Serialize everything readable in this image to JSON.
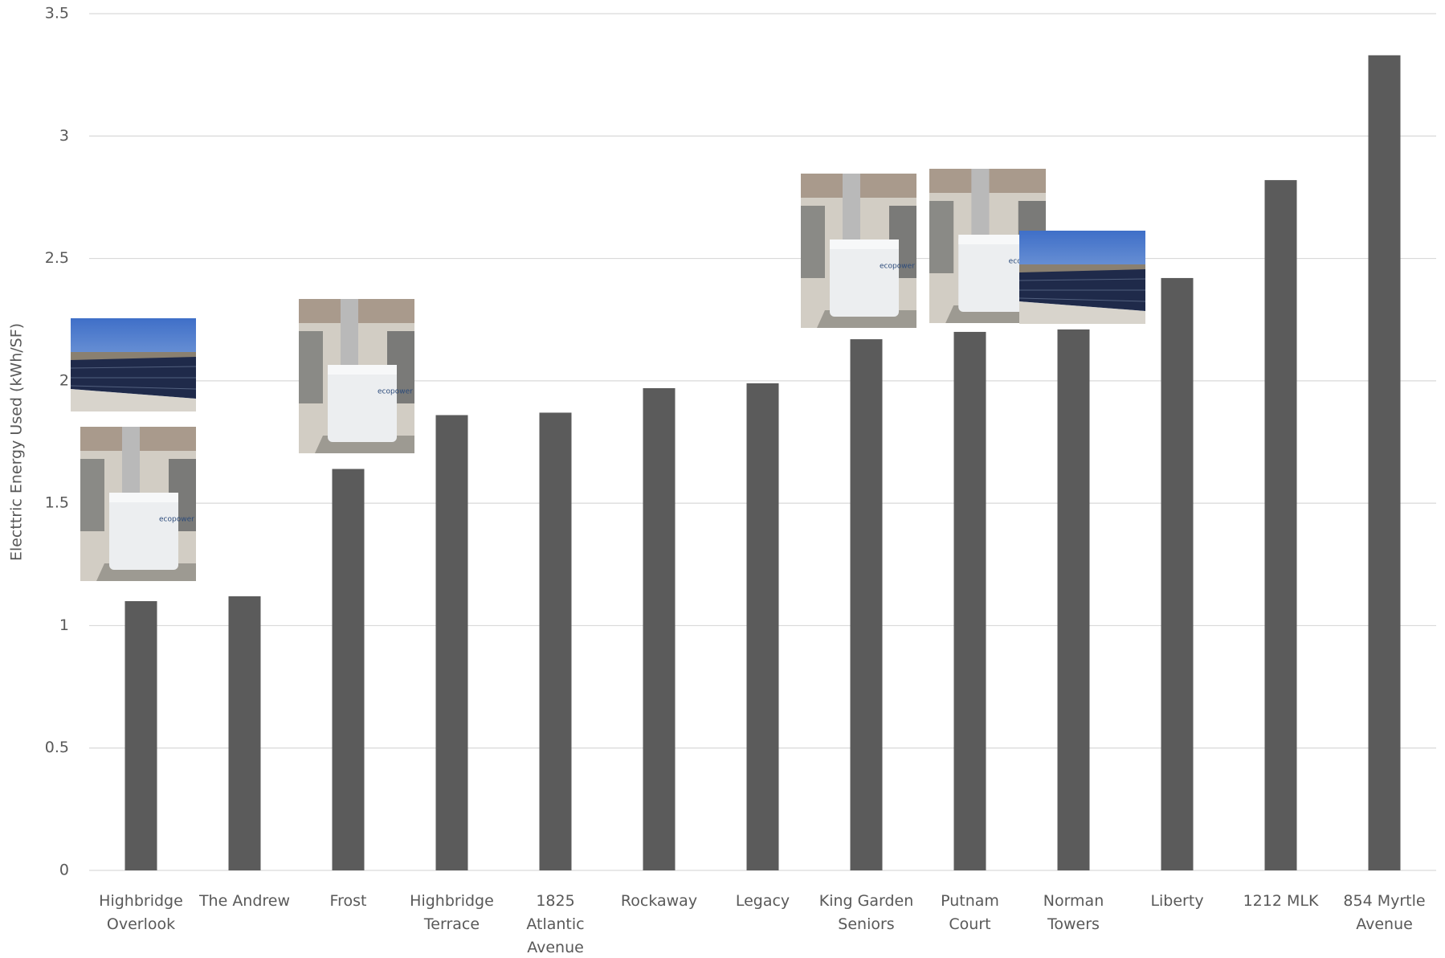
{
  "chart_data": {
    "type": "bar",
    "y_label": "Electtric Energy Used (kWh/SF)",
    "categories": [
      "Highbridge Overlook",
      "The Andrew",
      "Frost",
      "Highbridge Terrace",
      "1825 Atlantic Avenue",
      "Rockaway",
      "Legacy",
      "King Garden Seniors",
      "Putnam Court",
      "Norman Towers",
      "Liberty",
      "1212 MLK",
      "854 Myrtle Avenue"
    ],
    "values": [
      1.1,
      1.12,
      1.64,
      1.86,
      1.87,
      1.97,
      1.99,
      2.17,
      2.2,
      2.21,
      2.42,
      2.82,
      3.33
    ],
    "color": "#5b5b5b",
    "ylim": [
      0,
      3.5
    ],
    "yticks": [
      0,
      0.5,
      1,
      1.5,
      2,
      2.5,
      3,
      3.5
    ],
    "grid": true
  }
}
